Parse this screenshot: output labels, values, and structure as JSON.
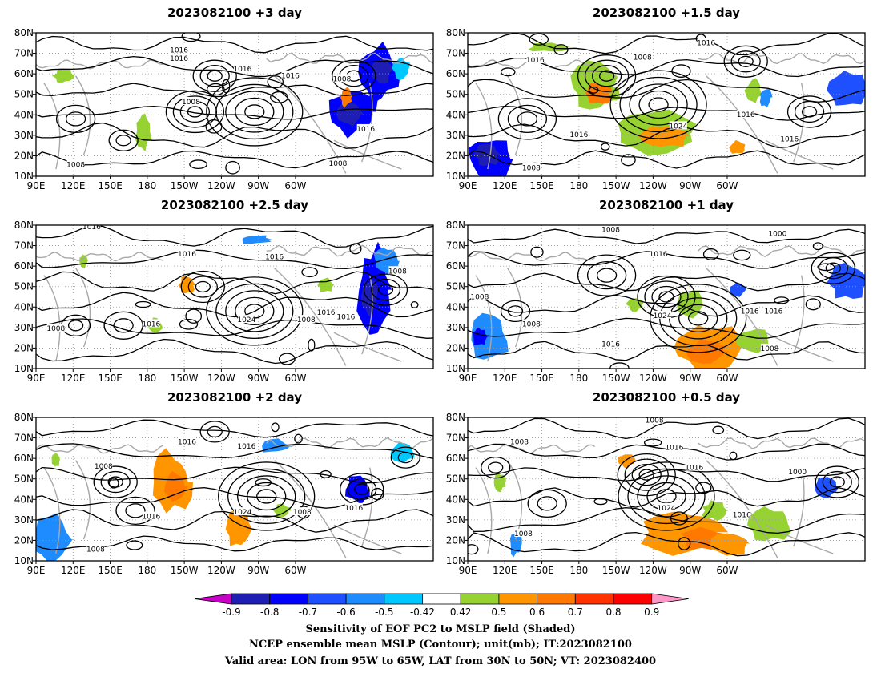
{
  "panels": [
    {
      "title": "2023082100  +3 day",
      "contour_labels": [
        "1016",
        "1016",
        "1016",
        "1016",
        "1008",
        "1008",
        "1016",
        "1008",
        "1008"
      ]
    },
    {
      "title": "2023082100  +1.5 day",
      "contour_labels": [
        "1016",
        "1008",
        "1016",
        "1016",
        "1024",
        "1016",
        "1016",
        "1008"
      ]
    },
    {
      "title": "2023082100  +2.5 day",
      "contour_labels": [
        "1016",
        "1016",
        "1016",
        "1008",
        "1016",
        "1024",
        "1008",
        "1016",
        "1016",
        "1008"
      ]
    },
    {
      "title": "2023082100  +1 day",
      "contour_labels": [
        "1008",
        "1000",
        "1016",
        "1008",
        "1024",
        "1008",
        "1016",
        "1016",
        "1016",
        "1008"
      ]
    },
    {
      "title": "2023082100  +2 day",
      "contour_labels": [
        "1016",
        "1016",
        "1008",
        "1024",
        "1008",
        "1016",
        "1016",
        "1008"
      ]
    },
    {
      "title": "2023082100  +0.5 day",
      "contour_labels": [
        "1008",
        "1008",
        "1016",
        "1016",
        "1000",
        "1024",
        "1016",
        "1008"
      ]
    }
  ],
  "axes": {
    "lon_ticks": [
      "90E",
      "120E",
      "150E",
      "180",
      "150W",
      "120W",
      "90W",
      "60W"
    ],
    "lat_ticks": [
      "80N",
      "70N",
      "60N",
      "50N",
      "40N",
      "30N",
      "20N",
      "10N"
    ]
  },
  "colorbar": {
    "labels": [
      "-0.9",
      "-0.8",
      "-0.7",
      "-0.6",
      "-0.5",
      "-0.42",
      "0.42",
      "0.5",
      "0.6",
      "0.7",
      "0.8",
      "0.9"
    ],
    "colors": [
      "#c800c8",
      "#1e1eb4",
      "#0000ff",
      "#1e50ff",
      "#1e8cff",
      "#00c8ff",
      "#ffffff",
      "#96d232",
      "#ff9600",
      "#ff7800",
      "#ff3200",
      "#ff0000",
      "#ff96c8"
    ]
  },
  "caption": {
    "line1": "Sensitivity of EOF PC2 to MSLP field (Shaded)",
    "line2": "NCEP ensemble mean MSLP (Contour); unit(mb); IT:2023082100",
    "line3": "Valid area: LON from 95W to 65W, LAT from 30N to 50N; VT: 2023082400"
  }
}
